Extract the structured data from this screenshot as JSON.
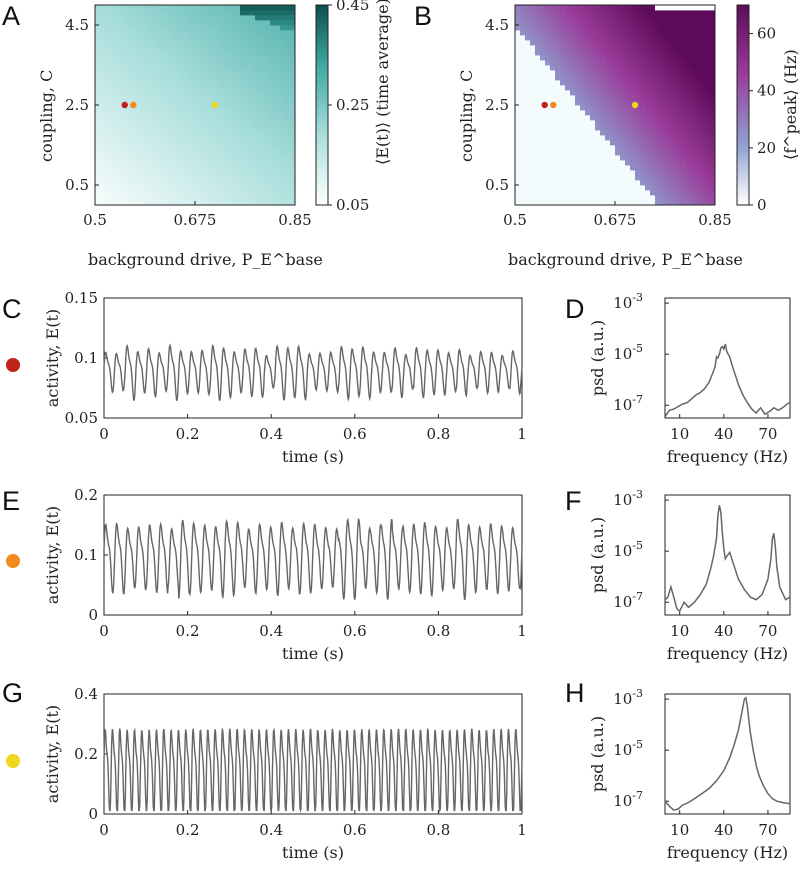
{
  "panel_letters": [
    "A",
    "B",
    "C",
    "D",
    "E",
    "F",
    "G",
    "H"
  ],
  "colors": {
    "marker_red": "#c0211a",
    "marker_orange": "#f28a1d",
    "marker_yellow": "#f2d51e",
    "trace": "#666666",
    "teal_low": "#ffffff",
    "teal_high": "#0c4f4b",
    "purple_low": "#ffffff",
    "purple_mid": "#8fa0d0",
    "purple_high": "#5e0a5a"
  },
  "chart_data": [
    {
      "id": "A",
      "type": "heatmap",
      "xlabel": "background drive, P_E^base",
      "ylabel": "coupling, C",
      "xlim": [
        0.5,
        0.85
      ],
      "ylim": [
        0,
        5
      ],
      "xticks": [
        "0.5",
        "0.675",
        "0.85"
      ],
      "xtick_values": [
        0.5,
        0.675,
        0.85
      ],
      "yticks": [
        "0.5",
        "2.5",
        "4.5"
      ],
      "ytick_values": [
        0.5,
        2.5,
        4.5
      ],
      "colorbar": {
        "label": "⟨E(t)⟩ (time average)",
        "range": [
          0.05,
          0.45
        ],
        "ticks": [
          "0.05",
          "0.25",
          "0.45"
        ],
        "tick_values": [
          0.05,
          0.25,
          0.45
        ]
      },
      "markers": [
        {
          "x": 0.552,
          "y": 2.5,
          "color": "red"
        },
        {
          "x": 0.567,
          "y": 2.5,
          "color": "orange"
        },
        {
          "x": 0.71,
          "y": 2.5,
          "color": "yellow"
        }
      ]
    },
    {
      "id": "B",
      "type": "heatmap",
      "xlabel": "background drive, P_E^base",
      "ylabel": "coupling, C",
      "xlim": [
        0.5,
        0.85
      ],
      "ylim": [
        0,
        5
      ],
      "xticks": [
        "0.5",
        "0.675",
        "0.85"
      ],
      "xtick_values": [
        0.5,
        0.675,
        0.85
      ],
      "yticks": [
        "0.5",
        "2.5",
        "4.5"
      ],
      "ytick_values": [
        0.5,
        2.5,
        4.5
      ],
      "colorbar": {
        "label": "⟨f^peak⟩ (Hz)",
        "range": [
          0,
          70
        ],
        "ticks": [
          "0",
          "20",
          "40",
          "60"
        ],
        "tick_values": [
          0,
          20,
          40,
          60
        ]
      },
      "markers": [
        {
          "x": 0.552,
          "y": 2.5,
          "color": "red"
        },
        {
          "x": 0.567,
          "y": 2.5,
          "color": "orange"
        },
        {
          "x": 0.71,
          "y": 2.5,
          "color": "yellow"
        }
      ]
    },
    {
      "id": "C",
      "type": "line",
      "marker_color": "red",
      "xlabel": "time (s)",
      "ylabel": "activity, E(t)",
      "xlim": [
        0,
        1
      ],
      "ylim": [
        0.05,
        0.15
      ],
      "xticks": [
        "0",
        "0.2",
        "0.4",
        "0.6",
        "0.8",
        "1"
      ],
      "xtick_values": [
        0,
        0.2,
        0.4,
        0.6,
        0.8,
        1
      ],
      "yticks": [
        "0.05",
        "0.1",
        "0.15"
      ],
      "ytick_values": [
        0.05,
        0.1,
        0.15
      ],
      "signal": {
        "baseline": 0.09,
        "freq_hz": 39,
        "amplitude": 0.016,
        "seed": 3,
        "jitter": 0.55
      }
    },
    {
      "id": "D",
      "type": "line",
      "yscale": "log",
      "xlabel": "frequency (Hz)",
      "ylabel": "psd (a.u.)",
      "xlim": [
        0,
        85
      ],
      "ylim_log10": [
        -7.5,
        -2.8
      ],
      "xticks": [
        "10",
        "40",
        "70"
      ],
      "xtick_values": [
        10,
        40,
        70
      ],
      "yticks": [
        "10^-7",
        "10^-5",
        "10^-3"
      ],
      "ytick_values_log10": [
        -7,
        -5,
        -3
      ],
      "x": [
        0,
        3,
        6,
        9,
        12,
        15,
        18,
        21,
        24,
        27,
        30,
        32,
        34,
        35,
        36,
        37,
        38,
        39,
        40,
        41,
        42,
        43,
        44,
        46,
        48,
        50,
        53,
        56,
        59,
        62,
        65,
        68,
        71,
        74,
        77,
        80,
        83,
        85
      ],
      "y_log10": [
        -7.45,
        -7.2,
        -7.15,
        -7.05,
        -6.95,
        -6.9,
        -6.75,
        -6.6,
        -6.5,
        -6.35,
        -6.1,
        -5.8,
        -5.5,
        -5.1,
        -5.15,
        -5.0,
        -4.75,
        -4.7,
        -4.8,
        -4.6,
        -4.9,
        -5.0,
        -5.1,
        -5.5,
        -5.85,
        -6.2,
        -6.6,
        -6.9,
        -7.15,
        -7.3,
        -7.1,
        -7.35,
        -7.25,
        -7.1,
        -7.2,
        -7.1,
        -6.95,
        -6.9
      ]
    },
    {
      "id": "E",
      "type": "line",
      "marker_color": "orange",
      "xlabel": "time (s)",
      "ylabel": "activity, E(t)",
      "xlim": [
        0,
        1
      ],
      "ylim": [
        0,
        0.2
      ],
      "xticks": [
        "0",
        "0.2",
        "0.4",
        "0.6",
        "0.8",
        "1"
      ],
      "xtick_values": [
        0,
        0.2,
        0.4,
        0.6,
        0.8,
        1
      ],
      "yticks": [
        "0",
        "0.1",
        "0.2"
      ],
      "ytick_values": [
        0,
        0.1,
        0.2
      ],
      "signal": {
        "baseline": 0.1,
        "freq_hz": 38,
        "amplitude": 0.05,
        "seed": 7,
        "jitter": 0.35
      }
    },
    {
      "id": "F",
      "type": "line",
      "yscale": "log",
      "xlabel": "frequency (Hz)",
      "ylabel": "psd (a.u.)",
      "xlim": [
        0,
        85
      ],
      "ylim_log10": [
        -7.5,
        -2.8
      ],
      "xticks": [
        "10",
        "40",
        "70"
      ],
      "xtick_values": [
        10,
        40,
        70
      ],
      "yticks": [
        "10^-7",
        "10^-5",
        "10^-3"
      ],
      "ytick_values_log10": [
        -7,
        -5,
        -3
      ],
      "x": [
        0,
        2,
        4,
        6,
        8,
        10,
        13,
        16,
        20,
        24,
        28,
        31,
        33,
        35,
        36,
        37,
        38,
        39,
        40,
        41,
        42,
        44,
        46,
        50,
        54,
        58,
        62,
        66,
        70,
        72,
        73,
        74,
        75,
        76,
        78,
        82,
        85
      ],
      "y_log10": [
        -6.9,
        -6.8,
        -6.4,
        -6.8,
        -7.25,
        -7.35,
        -7.0,
        -7.2,
        -7.0,
        -6.7,
        -6.3,
        -5.7,
        -5.2,
        -4.5,
        -3.6,
        -3.2,
        -3.5,
        -4.3,
        -4.9,
        -5.3,
        -5.2,
        -5.05,
        -5.4,
        -6.1,
        -6.5,
        -6.8,
        -6.9,
        -6.7,
        -6.1,
        -5.3,
        -4.5,
        -4.3,
        -4.8,
        -5.6,
        -6.4,
        -6.9,
        -6.8
      ]
    },
    {
      "id": "G",
      "type": "line",
      "marker_color": "yellow",
      "xlabel": "time (s)",
      "ylabel": "activity, E(t)",
      "xlim": [
        0,
        1
      ],
      "ylim": [
        0,
        0.4
      ],
      "xticks": [
        "0",
        "0.2",
        "0.4",
        "0.6",
        "0.8",
        "1"
      ],
      "xtick_values": [
        0,
        0.2,
        0.4,
        0.6,
        0.8,
        1
      ],
      "yticks": [
        "0",
        "0.2",
        "0.4"
      ],
      "ytick_values": [
        0,
        0.2,
        0.4
      ],
      "signal": {
        "baseline": 0.155,
        "freq_hz": 57,
        "amplitude": 0.125,
        "seed": 11,
        "jitter": 0.04
      }
    },
    {
      "id": "H",
      "type": "line",
      "yscale": "log",
      "xlabel": "frequency (Hz)",
      "ylabel": "psd (a.u.)",
      "xlim": [
        0,
        85
      ],
      "ylim_log10": [
        -7.5,
        -2.8
      ],
      "xticks": [
        "10",
        "40",
        "70"
      ],
      "xtick_values": [
        10,
        40,
        70
      ],
      "yticks": [
        "10^-7",
        "10^-5",
        "10^-3"
      ],
      "ytick_values_log10": [
        -7,
        -5,
        -3
      ],
      "x": [
        0,
        3,
        6,
        9,
        12,
        16,
        20,
        25,
        30,
        35,
        40,
        44,
        47,
        50,
        52,
        54,
        55,
        56,
        57,
        58,
        60,
        62,
        64,
        67,
        70,
        73,
        76,
        80,
        85
      ],
      "y_log10": [
        -7.0,
        -7.2,
        -7.35,
        -7.3,
        -7.15,
        -7.05,
        -6.9,
        -6.7,
        -6.5,
        -6.2,
        -5.8,
        -5.3,
        -4.8,
        -4.2,
        -3.6,
        -3.0,
        -2.95,
        -3.3,
        -3.8,
        -4.3,
        -5.0,
        -5.6,
        -6.0,
        -6.4,
        -6.7,
        -6.9,
        -7.0,
        -7.05,
        -7.1
      ]
    }
  ]
}
